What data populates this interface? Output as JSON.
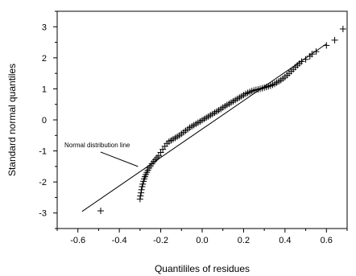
{
  "chart_data": {
    "type": "scatter",
    "title": "",
    "xlabel": "Quantililes of  residues",
    "ylabel": "Standard normal quantiles",
    "xlim": [
      -0.7,
      0.7
    ],
    "ylim": [
      -3.5,
      3.5
    ],
    "grid": false,
    "legend": "none",
    "x_ticks": [
      -0.6,
      -0.4,
      -0.2,
      0.0,
      0.2,
      0.4,
      0.6
    ],
    "x_tick_labels": [
      "-0.6",
      "-0.4",
      "-0.2",
      "0.0",
      "0.2",
      "0.4",
      "0.6"
    ],
    "y_ticks": [
      -3,
      -2,
      -1,
      0,
      1,
      2,
      3
    ],
    "y_tick_labels": [
      "-3",
      "-2",
      "-1",
      "0",
      "1",
      "2",
      "3"
    ],
    "reference_line": {
      "x": [
        -0.58,
        0.6
      ],
      "y": [
        -2.95,
        2.45
      ]
    },
    "annotation": {
      "text": "Normal distribution line",
      "points_to": {
        "x": -0.31,
        "y": -1.5
      }
    },
    "marker": "+",
    "color": "#000000",
    "points": [
      [
        -0.49,
        -2.93
      ],
      [
        -0.3,
        -2.55
      ],
      [
        -0.298,
        -2.45
      ],
      [
        -0.295,
        -2.35
      ],
      [
        -0.293,
        -2.25
      ],
      [
        -0.29,
        -2.15
      ],
      [
        -0.287,
        -2.07
      ],
      [
        -0.283,
        -1.98
      ],
      [
        -0.28,
        -1.9
      ],
      [
        -0.276,
        -1.83
      ],
      [
        -0.272,
        -1.76
      ],
      [
        -0.267,
        -1.69
      ],
      [
        -0.262,
        -1.62
      ],
      [
        -0.256,
        -1.55
      ],
      [
        -0.249,
        -1.48
      ],
      [
        -0.242,
        -1.41
      ],
      [
        -0.234,
        -1.34
      ],
      [
        -0.226,
        -1.28
      ],
      [
        -0.218,
        -1.22
      ],
      [
        -0.21,
        -1.16
      ],
      [
        -0.2,
        -1.05
      ],
      [
        -0.19,
        -0.95
      ],
      [
        -0.18,
        -0.85
      ],
      [
        -0.17,
        -0.76
      ],
      [
        -0.16,
        -0.7
      ],
      [
        -0.15,
        -0.66
      ],
      [
        -0.14,
        -0.62
      ],
      [
        -0.13,
        -0.58
      ],
      [
        -0.12,
        -0.54
      ],
      [
        -0.11,
        -0.5
      ],
      [
        -0.1,
        -0.45
      ],
      [
        -0.09,
        -0.4
      ],
      [
        -0.08,
        -0.35
      ],
      [
        -0.07,
        -0.3
      ],
      [
        -0.06,
        -0.25
      ],
      [
        -0.05,
        -0.21
      ],
      [
        -0.04,
        -0.17
      ],
      [
        -0.03,
        -0.13
      ],
      [
        -0.02,
        -0.09
      ],
      [
        -0.01,
        -0.05
      ],
      [
        0.0,
        -0.01
      ],
      [
        0.01,
        0.03
      ],
      [
        0.02,
        0.07
      ],
      [
        0.03,
        0.11
      ],
      [
        0.04,
        0.15
      ],
      [
        0.05,
        0.19
      ],
      [
        0.06,
        0.23
      ],
      [
        0.07,
        0.27
      ],
      [
        0.08,
        0.31
      ],
      [
        0.09,
        0.35
      ],
      [
        0.1,
        0.4
      ],
      [
        0.11,
        0.44
      ],
      [
        0.12,
        0.48
      ],
      [
        0.13,
        0.52
      ],
      [
        0.14,
        0.56
      ],
      [
        0.15,
        0.6
      ],
      [
        0.16,
        0.64
      ],
      [
        0.17,
        0.68
      ],
      [
        0.18,
        0.72
      ],
      [
        0.19,
        0.76
      ],
      [
        0.2,
        0.8
      ],
      [
        0.21,
        0.84
      ],
      [
        0.22,
        0.87
      ],
      [
        0.23,
        0.9
      ],
      [
        0.24,
        0.93
      ],
      [
        0.25,
        0.95
      ],
      [
        0.26,
        0.97
      ],
      [
        0.27,
        0.98
      ],
      [
        0.28,
        1.0
      ],
      [
        0.29,
        1.02
      ],
      [
        0.3,
        1.04
      ],
      [
        0.31,
        1.06
      ],
      [
        0.32,
        1.08
      ],
      [
        0.33,
        1.1
      ],
      [
        0.34,
        1.13
      ],
      [
        0.35,
        1.16
      ],
      [
        0.36,
        1.2
      ],
      [
        0.37,
        1.24
      ],
      [
        0.38,
        1.28
      ],
      [
        0.39,
        1.33
      ],
      [
        0.4,
        1.38
      ],
      [
        0.41,
        1.44
      ],
      [
        0.42,
        1.5
      ],
      [
        0.43,
        1.57
      ],
      [
        0.44,
        1.63
      ],
      [
        0.45,
        1.7
      ],
      [
        0.46,
        1.76
      ],
      [
        0.47,
        1.82
      ],
      [
        0.48,
        1.88
      ],
      [
        0.5,
        1.95
      ],
      [
        0.52,
        2.05
      ],
      [
        0.53,
        2.12
      ],
      [
        0.55,
        2.2
      ],
      [
        0.6,
        2.4
      ],
      [
        0.64,
        2.57
      ],
      [
        0.68,
        2.93
      ]
    ]
  }
}
